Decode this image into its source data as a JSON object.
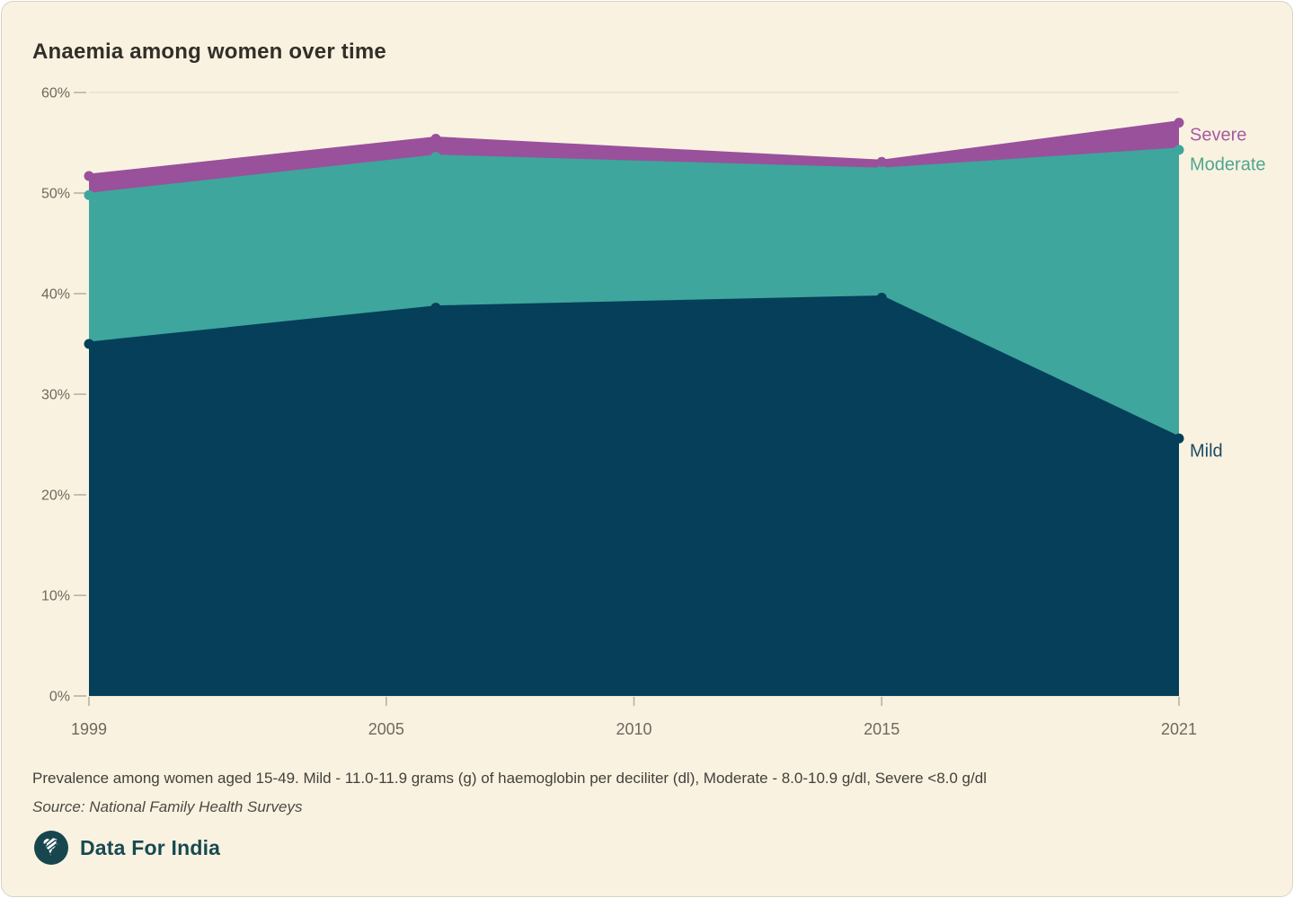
{
  "title": "Anaemia among women over time",
  "footnote": "Prevalence among women aged 15-49. Mild - 11.0-11.9 grams (g) of haemoglobin per deciliter (dl), Moderate - 8.0-10.9 g/dl, Severe <8.0 g/dl",
  "source": "Source: National Family Health Surveys",
  "brand": {
    "name": "Data For India"
  },
  "chart_data": {
    "type": "area",
    "stacked": true,
    "x": [
      1999,
      2006,
      2015,
      2021
    ],
    "series": [
      {
        "name": "Mild",
        "values": [
          35.0,
          38.6,
          39.6,
          25.6
        ],
        "color": "#053f5a",
        "label_color": "#1c4b63"
      },
      {
        "name": "Moderate",
        "values": [
          14.8,
          15.0,
          12.7,
          28.7
        ],
        "color": "#3ea69d",
        "label_color": "#4fa591"
      },
      {
        "name": "Severe",
        "values": [
          1.9,
          1.8,
          0.8,
          2.7
        ],
        "color": "#99519b",
        "label_color": "#a55ba1"
      }
    ],
    "cumulative_tops": {
      "Mild": [
        35.0,
        38.6,
        39.6,
        25.6
      ],
      "Moderate": [
        49.8,
        53.6,
        52.3,
        54.3
      ],
      "Severe": [
        51.7,
        55.4,
        53.1,
        57.0
      ]
    },
    "xlim": [
      1999,
      2021
    ],
    "ylim": [
      0,
      60
    ],
    "x_ticks": [
      {
        "year": 1999,
        "label": "1999"
      },
      {
        "year": 2005,
        "label": "2005"
      },
      {
        "year": 2010,
        "label": "2010"
      },
      {
        "year": 2015,
        "label": "2015"
      },
      {
        "year": 2021,
        "label": "2021"
      }
    ],
    "y_ticks": [
      {
        "value": 0,
        "label": "0%"
      },
      {
        "value": 10,
        "label": "10%"
      },
      {
        "value": 20,
        "label": "20%"
      },
      {
        "value": 30,
        "label": "30%"
      },
      {
        "value": 40,
        "label": "40%"
      },
      {
        "value": 50,
        "label": "50%"
      },
      {
        "value": 60,
        "label": "60%"
      }
    ],
    "grid": true,
    "legend_position": "right-edge-labels",
    "colors": {
      "grid": "#e8e1d1",
      "tick": "#b4ae9f",
      "axis_text": "#6e695e",
      "background": "#faf2e1"
    }
  }
}
